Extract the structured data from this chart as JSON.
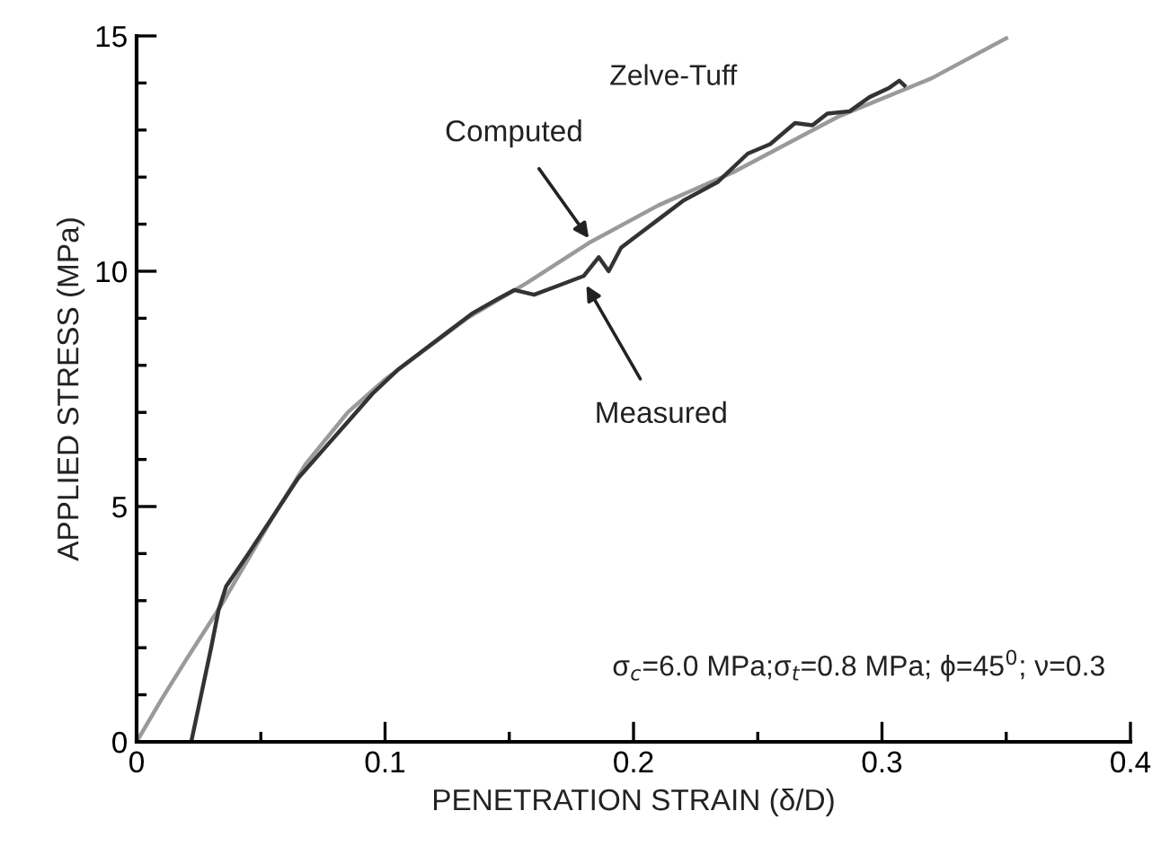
{
  "chart_data": {
    "type": "line",
    "xlabel": "PENETRATION STRAIN (δ/D)",
    "ylabel": "APPLIED STRESS (MPa)",
    "xlim": [
      0,
      0.4
    ],
    "ylim": [
      0,
      15
    ],
    "xticks": [
      0,
      {
        "value": 0.05,
        "label": null
      },
      0.1,
      {
        "value": 0.15,
        "label": null
      },
      0.2,
      {
        "value": 0.25,
        "label": null
      },
      0.3,
      {
        "value": 0.35,
        "label": null
      },
      0.4
    ],
    "yticks": [
      0,
      {
        "value": 1,
        "label": null
      },
      {
        "value": 2,
        "label": null
      },
      {
        "value": 3,
        "label": null
      },
      {
        "value": 4,
        "label": null
      },
      5,
      {
        "value": 6,
        "label": null
      },
      {
        "value": 7,
        "label": null
      },
      {
        "value": 8,
        "label": null
      },
      {
        "value": 9,
        "label": null
      },
      10,
      {
        "value": 11,
        "label": null
      },
      {
        "value": 12,
        "label": null
      },
      {
        "value": 13,
        "label": null
      },
      {
        "value": 14,
        "label": null
      },
      15
    ],
    "grid": false,
    "legend": false,
    "marker": "none",
    "line_style": "solid",
    "series": [
      {
        "color": "#9a9a9a",
        "x": [
          0,
          0.01,
          0.02,
          0.034,
          0.054,
          0.068,
          0.085,
          0.1,
          0.133,
          0.157,
          0.182,
          0.21,
          0.24,
          0.283,
          0.32,
          0.35
        ],
        "values": [
          0,
          0.9,
          1.75,
          2.9,
          4.7,
          5.9,
          7.0,
          7.7,
          9.0,
          9.75,
          10.6,
          11.4,
          12.1,
          13.3,
          14.1,
          14.95
        ]
      },
      {
        "color": "#333333",
        "x": [
          0.022,
          0.026,
          0.03,
          0.033,
          0.036,
          0.045,
          0.055,
          0.065,
          0.075,
          0.085,
          0.095,
          0.105,
          0.115,
          0.125,
          0.135,
          0.145,
          0.152,
          0.16,
          0.17,
          0.18,
          0.186,
          0.19,
          0.195,
          0.2,
          0.21,
          0.22,
          0.234,
          0.246,
          0.255,
          0.265,
          0.272,
          0.278,
          0.287,
          0.295,
          0.303,
          0.307,
          0.309
        ],
        "values": [
          0,
          1.0,
          2.0,
          2.8,
          3.3,
          4.0,
          4.8,
          5.6,
          6.2,
          6.8,
          7.4,
          7.9,
          8.3,
          8.7,
          9.1,
          9.4,
          9.6,
          9.5,
          9.7,
          9.9,
          10.3,
          10.0,
          10.5,
          10.7,
          11.1,
          11.5,
          11.9,
          12.5,
          12.7,
          13.15,
          13.1,
          13.35,
          13.4,
          13.7,
          13.9,
          14.05,
          13.95
        ]
      }
    ],
    "annotations": [
      "Zelve-Tuff",
      {
        "text": "Computed",
        "x": 0.182,
        "y": 10.7
      },
      {
        "text": "Measured",
        "x": 0.181,
        "y": 9.7
      },
      "σ$_{c}$=6.0 MPa;σ$_{t}$=0.8 MPa; ϕ=45$^{0}$; ν=0.3"
    ]
  }
}
